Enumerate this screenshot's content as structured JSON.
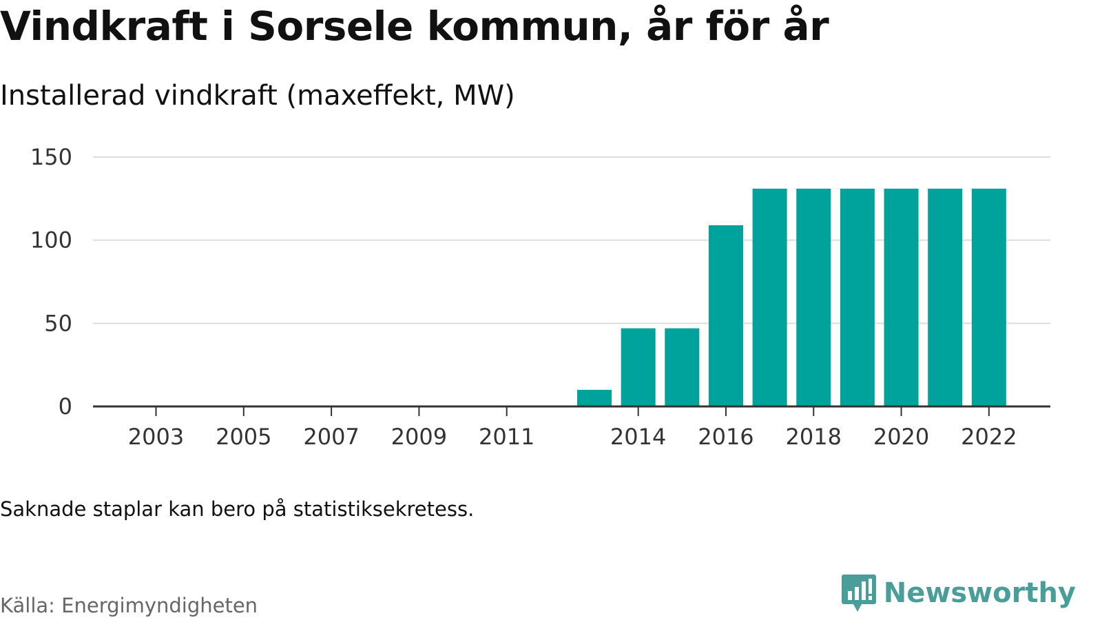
{
  "title": "Vindkraft i Sorsele kommun, år för år",
  "subtitle": "Installerad vindkraft (maxeffekt, MW)",
  "note": "Saknade staplar kan bero på statistiksekretess.",
  "source": "Källa: Energimyndigheten",
  "brand": {
    "name": "Newsworthy",
    "icon": "bar-chart-speech-bubble-icon",
    "color": "#4a9e99"
  },
  "chart_data": {
    "type": "bar",
    "categories": [
      "2003",
      "2004",
      "2005",
      "2006",
      "2007",
      "2008",
      "2009",
      "2010",
      "2011",
      "2012",
      "2013",
      "2014",
      "2015",
      "2016",
      "2017",
      "2018",
      "2019",
      "2020",
      "2021",
      "2022"
    ],
    "values": [
      0,
      0,
      0,
      0,
      0,
      0,
      0,
      0,
      0,
      0,
      10,
      47,
      47,
      109,
      131,
      131,
      131,
      131,
      131,
      131
    ],
    "x_tick_labels": [
      "2003",
      "2005",
      "2007",
      "2009",
      "2011",
      "2014",
      "2016",
      "2018",
      "2020",
      "2022"
    ],
    "y_ticks": [
      0,
      50,
      100,
      150
    ],
    "ylim": [
      0,
      150
    ],
    "xlabel": "",
    "ylabel": "",
    "grid": true,
    "bar_color": "#00a39b",
    "grid_color": "#dddddd",
    "axis_color": "#333333"
  }
}
